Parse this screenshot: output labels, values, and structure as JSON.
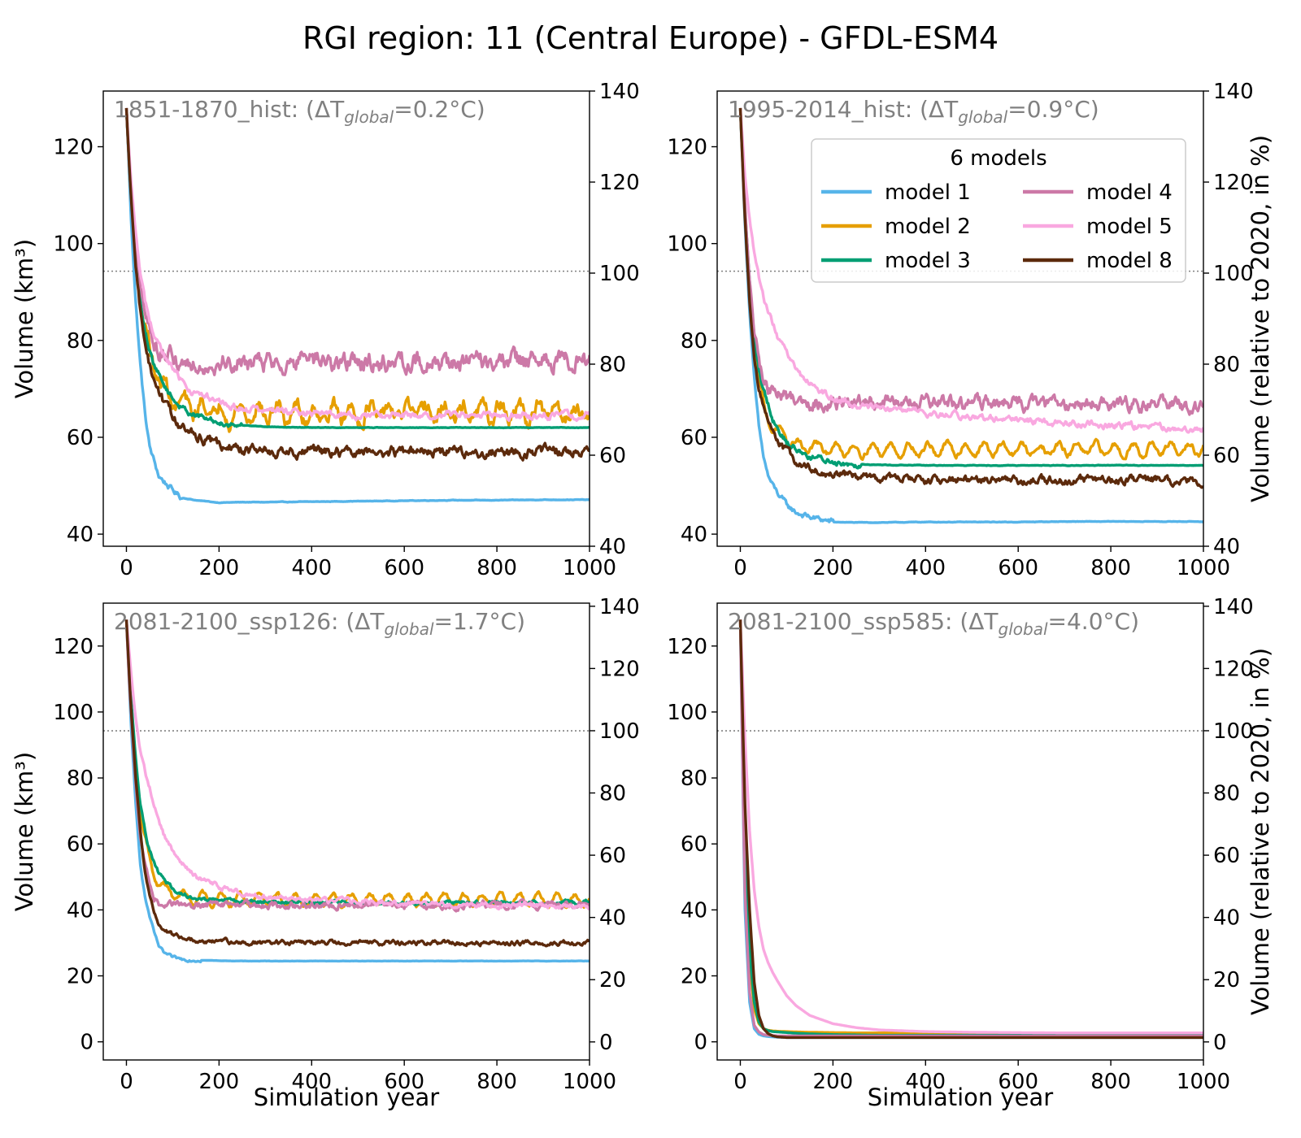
{
  "figure": {
    "title": "RGI region: 11 (Central Europe) - GFDL-ESM4"
  },
  "legend": {
    "title": "6 models",
    "entries": [
      {
        "label": "model 1",
        "color": "#56B4E9"
      },
      {
        "label": "model 2",
        "color": "#E69F00"
      },
      {
        "label": "model 3",
        "color": "#009E73"
      },
      {
        "label": "model 4",
        "color": "#CC79A7"
      },
      {
        "label": "model 5",
        "color": "#F9A8E0"
      },
      {
        "label": "model 8",
        "color": "#5C2A0C"
      }
    ]
  },
  "chart_data": [
    {
      "type": "line",
      "panel": "top-left",
      "annotation": {
        "prefix": "1851-1870_hist: (ΔT",
        "sub": "global",
        "suffix": "=0.2°C)"
      },
      "xlabel": "",
      "ylabel": "Volume (km³)",
      "ylabel_right": "",
      "xlim": [
        -50,
        1000
      ],
      "ylim": [
        37.5,
        131.5
      ],
      "ylim_right": [
        40,
        140
      ],
      "xticks": [
        0,
        200,
        400,
        600,
        800,
        1000
      ],
      "yticks": [
        40,
        60,
        80,
        100,
        120
      ],
      "yticks_right": [
        40,
        60,
        80,
        100,
        120,
        140
      ],
      "reference_line": 94.3,
      "x": [
        0,
        5,
        10,
        20,
        30,
        40,
        50,
        60,
        70,
        80,
        100,
        120,
        150,
        200,
        250,
        300,
        400,
        500,
        600,
        700,
        800,
        900,
        1000
      ],
      "series": [
        {
          "name": "model 1",
          "color": "#56B4E9",
          "noise": 0.8,
          "noise_end": 120,
          "values": [
            128,
            117,
            105,
            88,
            75,
            65,
            58,
            55,
            52,
            51,
            49,
            47.5,
            47,
            46.5,
            46.6,
            46.6,
            46.7,
            46.8,
            46.9,
            47,
            47,
            47.1,
            47.1
          ]
        },
        {
          "name": "model 2",
          "color": "#E69F00",
          "noise": 2.0,
          "osc": 1.8,
          "values": [
            128,
            118,
            110,
            98,
            88,
            82,
            78,
            75,
            72,
            70,
            68,
            66.5,
            66,
            65.5,
            65,
            65,
            65,
            65,
            65,
            65,
            65,
            65,
            65.5
          ]
        },
        {
          "name": "model 3",
          "color": "#009E73",
          "noise": 0.8,
          "noise_end": 250,
          "values": [
            128,
            118,
            110,
            98,
            88,
            82,
            78,
            75,
            73,
            71,
            68,
            66,
            64.5,
            63,
            62.5,
            62.2,
            62,
            62,
            62,
            62,
            62,
            62,
            62
          ]
        },
        {
          "name": "model 4",
          "color": "#CC79A7",
          "noise": 2.6,
          "values": [
            128,
            118,
            110,
            98,
            90,
            85,
            82,
            80,
            78,
            77,
            76,
            75.5,
            75.5,
            75.5,
            75.5,
            75.5,
            75.5,
            75.5,
            75.5,
            75.5,
            75.5,
            75.5,
            76
          ]
        },
        {
          "name": "model 5",
          "color": "#F9A8E0",
          "noise": 1.0,
          "values": [
            128,
            120,
            113,
            102,
            94,
            88,
            84,
            81,
            79,
            77,
            74,
            71.5,
            69,
            67,
            66,
            65.5,
            65,
            64.5,
            64.5,
            64.5,
            64.5,
            64.5,
            64.5
          ]
        },
        {
          "name": "model 8",
          "color": "#5C2A0C",
          "noise": 1.4,
          "values": [
            128,
            118,
            110,
            96,
            86,
            80,
            75,
            72,
            69,
            67,
            64,
            62,
            60,
            58.5,
            57.5,
            57.2,
            57,
            57,
            57,
            57,
            57,
            57,
            57.5
          ]
        }
      ]
    },
    {
      "type": "line",
      "panel": "top-right",
      "annotation": {
        "prefix": "1995-2014_hist: (ΔT",
        "sub": "global",
        "suffix": "=0.9°C)"
      },
      "xlabel": "",
      "ylabel": "",
      "ylabel_right": "Volume (relative to 2020, in %)",
      "xlim": [
        -50,
        1000
      ],
      "ylim": [
        37.5,
        131.5
      ],
      "ylim_right": [
        40,
        140
      ],
      "xticks": [
        0,
        200,
        400,
        600,
        800,
        1000
      ],
      "yticks": [
        40,
        60,
        80,
        100,
        120
      ],
      "yticks_right": [
        40,
        60,
        80,
        100,
        120,
        140
      ],
      "reference_line": 94.3,
      "x": [
        0,
        5,
        10,
        20,
        30,
        40,
        50,
        60,
        70,
        80,
        100,
        120,
        150,
        200,
        250,
        300,
        400,
        500,
        600,
        700,
        800,
        900,
        1000
      ],
      "series": [
        {
          "name": "model 1",
          "color": "#56B4E9",
          "noise": 0.8,
          "noise_end": 200,
          "values": [
            128,
            116,
            104,
            86,
            72,
            62,
            56,
            52,
            50,
            48.5,
            46,
            44.5,
            43.5,
            42.5,
            42.4,
            42.4,
            42.5,
            42.5,
            42.5,
            42.6,
            42.6,
            42.6,
            42.6
          ]
        },
        {
          "name": "model 2",
          "color": "#E69F00",
          "noise": 0.8,
          "osc": 1.2,
          "values": [
            128,
            117,
            106,
            90,
            79,
            72,
            67,
            64,
            62,
            61,
            59.5,
            58.5,
            58,
            57.5,
            57.5,
            57.5,
            57.5,
            57.5,
            57.5,
            57.5,
            57.5,
            57.5,
            57.5
          ]
        },
        {
          "name": "model 3",
          "color": "#009E73",
          "noise": 0.9,
          "noise_end": 260,
          "values": [
            128,
            117,
            107,
            92,
            81,
            74,
            70,
            67,
            64,
            62,
            59,
            57.5,
            56,
            55,
            54.5,
            54.3,
            54.2,
            54.2,
            54.2,
            54.2,
            54.2,
            54.2,
            54.2
          ]
        },
        {
          "name": "model 4",
          "color": "#CC79A7",
          "noise": 1.9,
          "values": [
            128,
            118,
            108,
            92,
            82,
            76,
            72,
            70,
            69.5,
            69,
            68.5,
            68,
            67.5,
            67,
            67,
            67,
            67,
            67,
            67,
            67,
            67,
            67,
            65.5
          ]
        },
        {
          "name": "model 5",
          "color": "#F9A8E0",
          "noise": 0.9,
          "values": [
            128,
            121,
            114,
            105,
            98,
            93,
            89,
            86,
            83.5,
            81,
            77,
            74,
            71,
            68,
            66.5,
            66,
            65,
            64,
            63.5,
            63,
            62.5,
            62,
            61.5
          ]
        },
        {
          "name": "model 8",
          "color": "#5C2A0C",
          "noise": 1.1,
          "values": [
            128,
            116,
            105,
            88,
            77,
            70,
            66,
            63,
            61,
            59.5,
            57,
            55,
            53.5,
            52.5,
            51.8,
            51.5,
            51.3,
            51.2,
            51.2,
            51.2,
            51.2,
            51.2,
            50.5
          ]
        }
      ]
    },
    {
      "type": "line",
      "panel": "bottom-left",
      "annotation": {
        "prefix": "2081-2100_ssp126: (ΔT",
        "sub": "global",
        "suffix": "=1.7°C)"
      },
      "xlabel": "Simulation year",
      "ylabel": "Volume (km³)",
      "ylabel_right": "",
      "xlim": [
        -50,
        1000
      ],
      "ylim": [
        -5.5,
        133
      ],
      "ylim_right": [
        -5.8,
        141
      ],
      "xticks": [
        0,
        200,
        400,
        600,
        800,
        1000
      ],
      "yticks": [
        0,
        20,
        40,
        60,
        80,
        100,
        120
      ],
      "yticks_right": [
        0,
        20,
        40,
        60,
        80,
        100,
        120,
        140
      ],
      "reference_line": 94.3,
      "x": [
        0,
        5,
        10,
        20,
        30,
        40,
        50,
        60,
        70,
        80,
        100,
        120,
        150,
        200,
        250,
        300,
        400,
        500,
        600,
        700,
        800,
        900,
        1000
      ],
      "series": [
        {
          "name": "model 1",
          "color": "#56B4E9",
          "noise": 0.6,
          "noise_end": 160,
          "values": [
            128,
            112,
            96,
            72,
            54,
            44,
            38,
            33,
            29,
            27,
            25.5,
            25,
            24.8,
            24.6,
            24.5,
            24.5,
            24.5,
            24.5,
            24.5,
            24.5,
            24.5,
            24.5,
            24.5
          ]
        },
        {
          "name": "model 2",
          "color": "#E69F00",
          "noise": 0.9,
          "osc": 1.8,
          "values": [
            128,
            115,
            103,
            84,
            70,
            61,
            55,
            51,
            48,
            46.5,
            45,
            44,
            43.5,
            43,
            43,
            43,
            43,
            43,
            43,
            43,
            43,
            43,
            43
          ]
        },
        {
          "name": "model 3",
          "color": "#009E73",
          "noise": 0.8,
          "values": [
            128,
            116,
            104,
            86,
            72,
            64,
            58,
            54,
            51,
            49,
            46.5,
            45,
            43.5,
            43,
            42.5,
            42.3,
            42.2,
            42.2,
            42.2,
            42.2,
            42.2,
            42.2,
            42.2
          ]
        },
        {
          "name": "model 4",
          "color": "#CC79A7",
          "noise": 1.4,
          "values": [
            128,
            112,
            100,
            78,
            62,
            54,
            48,
            44,
            42,
            41.5,
            41.5,
            41.5,
            41.5,
            41.5,
            41.5,
            41.5,
            41.5,
            41.5,
            41.5,
            41.5,
            41.5,
            41.5,
            41.5
          ]
        },
        {
          "name": "model 5",
          "color": "#F9A8E0",
          "noise": 1.0,
          "values": [
            128,
            120,
            112,
            98,
            88,
            82,
            77,
            72,
            67,
            63,
            58,
            54,
            50,
            47,
            45,
            44,
            43,
            42.5,
            42,
            41.5,
            41.5,
            41.2,
            41
          ]
        },
        {
          "name": "model 8",
          "color": "#5C2A0C",
          "noise": 0.9,
          "values": [
            128,
            114,
            101,
            80,
            64,
            52,
            44,
            39,
            36,
            34,
            32.5,
            31.5,
            31,
            30.5,
            30.2,
            30,
            30,
            30,
            30,
            30,
            30,
            30,
            30
          ]
        }
      ]
    },
    {
      "type": "line",
      "panel": "bottom-right",
      "annotation": {
        "prefix": "2081-2100_ssp585: (ΔT",
        "sub": "global",
        "suffix": "=4.0°C)"
      },
      "xlabel": "Simulation year",
      "ylabel": "",
      "ylabel_right": "Volume (relative to 2020, in %)",
      "xlim": [
        -50,
        1000
      ],
      "ylim": [
        -5.5,
        133
      ],
      "ylim_right": [
        -5.8,
        141
      ],
      "xticks": [
        0,
        200,
        400,
        600,
        800,
        1000
      ],
      "yticks": [
        0,
        20,
        40,
        60,
        80,
        100,
        120
      ],
      "yticks_right": [
        0,
        20,
        40,
        60,
        80,
        100,
        120,
        140
      ],
      "reference_line": 94.3,
      "x": [
        0,
        5,
        10,
        20,
        30,
        40,
        50,
        60,
        70,
        80,
        100,
        120,
        150,
        200,
        250,
        300,
        400,
        500,
        600,
        700,
        800,
        900,
        1000
      ],
      "series": [
        {
          "name": "model 1",
          "color": "#56B4E9",
          "noise": 0,
          "values": [
            128,
            80,
            40,
            12,
            4,
            2.3,
            1.8,
            1.6,
            1.5,
            1.4,
            1.3,
            1.3,
            1.3,
            1.3,
            1.3,
            1.3,
            1.3,
            1.3,
            1.3,
            1.3,
            1.3,
            1.3,
            1.3
          ]
        },
        {
          "name": "model 2",
          "color": "#E69F00",
          "noise": 0,
          "values": [
            128,
            95,
            62,
            25,
            10,
            5.5,
            4,
            3.5,
            3.3,
            3.2,
            3.1,
            3,
            2.9,
            2.8,
            2.7,
            2.7,
            2.7,
            2.7,
            2.7,
            2.7,
            2.7,
            2.7,
            2.7
          ]
        },
        {
          "name": "model 3",
          "color": "#009E73",
          "noise": 0,
          "values": [
            128,
            96,
            65,
            28,
            12,
            6,
            4,
            3.4,
            3.1,
            3,
            2.8,
            2.6,
            2.4,
            2.2,
            2.1,
            2,
            2,
            2,
            2,
            2,
            2,
            2,
            2
          ]
        },
        {
          "name": "model 4",
          "color": "#CC79A7",
          "noise": 0,
          "values": [
            128,
            82,
            45,
            15,
            5,
            3,
            2.2,
            2,
            1.9,
            1.8,
            1.8,
            1.8,
            1.8,
            1.8,
            1.8,
            1.8,
            1.8,
            1.8,
            1.8,
            1.8,
            1.8,
            1.8,
            1.8
          ]
        },
        {
          "name": "model 5",
          "color": "#F9A8E0",
          "noise": 0,
          "values": [
            128,
            110,
            92,
            64,
            46,
            35,
            28,
            24,
            21,
            18.5,
            14,
            11,
            8,
            5.5,
            4.3,
            3.6,
            3.1,
            2.9,
            2.8,
            2.7,
            2.7,
            2.7,
            2.7
          ]
        },
        {
          "name": "model 8",
          "color": "#5C2A0C",
          "noise": 0,
          "values": [
            128,
            98,
            72,
            40,
            18,
            8,
            4,
            2.5,
            1.8,
            1.5,
            1.3,
            1.3,
            1.3,
            1.3,
            1.3,
            1.3,
            1.3,
            1.3,
            1.3,
            1.3,
            1.3,
            1.3,
            1.3
          ]
        }
      ]
    }
  ]
}
